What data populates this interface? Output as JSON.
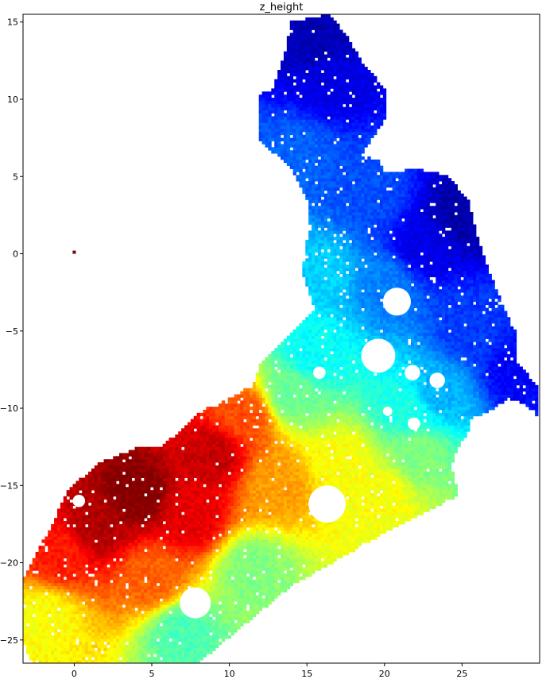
{
  "chart_data": {
    "type": "heatmap",
    "title": "z_height",
    "xlabel": "",
    "ylabel": "",
    "xlim": [
      -3.3,
      30.0
    ],
    "ylim": [
      -26.5,
      15.5
    ],
    "xticks": [
      0,
      5,
      10,
      15,
      20,
      25
    ],
    "yticks": [
      -25,
      -20,
      -15,
      -10,
      -5,
      0,
      5,
      10,
      15
    ],
    "xtick_labels": [
      "0",
      "5",
      "10",
      "15",
      "20",
      "25"
    ],
    "ytick_labels": [
      "−25",
      "−20",
      "−15",
      "−10",
      "−5",
      "0",
      "5",
      "10",
      "15"
    ],
    "colormap": "jet",
    "grid": false,
    "legend": "none",
    "colorbar": false,
    "value_range": [
      0,
      1
    ],
    "region_outline": [
      [
        -2.8,
        -26.5
      ],
      [
        8.0,
        -26.5
      ],
      [
        14.0,
        -21.5
      ],
      [
        20.5,
        -17.8
      ],
      [
        24.8,
        -15.6
      ],
      [
        24.3,
        -13.8
      ],
      [
        24.6,
        -12.8
      ],
      [
        25.3,
        -11.8
      ],
      [
        25.6,
        -10.6
      ],
      [
        26.6,
        -10.3
      ],
      [
        28.0,
        -9.4
      ],
      [
        29.0,
        -9.7
      ],
      [
        29.9,
        -10.5
      ],
      [
        29.9,
        -8.6
      ],
      [
        28.5,
        -7.0
      ],
      [
        28.4,
        -5.0
      ],
      [
        27.8,
        -3.8
      ],
      [
        27.0,
        -1.8
      ],
      [
        26.0,
        1.0
      ],
      [
        25.4,
        3.5
      ],
      [
        24.0,
        5.1
      ],
      [
        22.0,
        5.5
      ],
      [
        20.0,
        5.2
      ],
      [
        19.7,
        6.0
      ],
      [
        18.5,
        6.4
      ],
      [
        20.0,
        8.6
      ],
      [
        20.0,
        10.7
      ],
      [
        18.5,
        12.5
      ],
      [
        17.5,
        14.2
      ],
      [
        16.5,
        15.5
      ],
      [
        14.0,
        15.0
      ],
      [
        13.5,
        12.7
      ],
      [
        12.8,
        10.6
      ],
      [
        11.8,
        10.3
      ],
      [
        11.8,
        7.5
      ],
      [
        14.0,
        5.5
      ],
      [
        15.0,
        3.5
      ],
      [
        15.0,
        1.0
      ],
      [
        14.7,
        -1.3
      ],
      [
        15.5,
        -3.7
      ],
      [
        15.0,
        -4.2
      ],
      [
        13.5,
        -5.6
      ],
      [
        12.0,
        -7.2
      ],
      [
        11.6,
        -8.4
      ],
      [
        9.8,
        -9.5
      ],
      [
        8.0,
        -10.2
      ],
      [
        7.0,
        -11.4
      ],
      [
        5.5,
        -12.5
      ],
      [
        4.0,
        -12.6
      ],
      [
        1.5,
        -13.6
      ],
      [
        -0.5,
        -15.4
      ],
      [
        -1.4,
        -17.5
      ],
      [
        -2.4,
        -19.3
      ],
      [
        -3.3,
        -21.0
      ],
      [
        -3.3,
        -25.0
      ]
    ],
    "outlier_points": [
      {
        "x": 0.0,
        "y": 0.1,
        "value": 1.0
      }
    ],
    "value_anchors": [
      {
        "x": 4.0,
        "y": -15.5,
        "value": 1.0
      },
      {
        "x": 1.5,
        "y": -17.5,
        "value": 0.95
      },
      {
        "x": 9.0,
        "y": -13.0,
        "value": 0.93
      },
      {
        "x": 7.5,
        "y": -17.0,
        "value": 0.9
      },
      {
        "x": -1.0,
        "y": -19.5,
        "value": 0.85
      },
      {
        "x": 11.0,
        "y": -10.5,
        "value": 0.8
      },
      {
        "x": 5.0,
        "y": -21.0,
        "value": 0.78
      },
      {
        "x": 13.0,
        "y": -15.0,
        "value": 0.72
      },
      {
        "x": -2.0,
        "y": -23.5,
        "value": 0.62
      },
      {
        "x": 17.5,
        "y": -13.5,
        "value": 0.62
      },
      {
        "x": 20.0,
        "y": -15.5,
        "value": 0.62
      },
      {
        "x": 11.5,
        "y": -20.5,
        "value": 0.5
      },
      {
        "x": 7.0,
        "y": -24.5,
        "value": 0.45
      },
      {
        "x": 14.0,
        "y": -9.0,
        "value": 0.48
      },
      {
        "x": 22.0,
        "y": -13.0,
        "value": 0.5
      },
      {
        "x": 15.5,
        "y": -6.5,
        "value": 0.38
      },
      {
        "x": 21.5,
        "y": -10.0,
        "value": 0.4
      },
      {
        "x": 16.0,
        "y": -1.5,
        "value": 0.33
      },
      {
        "x": 23.5,
        "y": -9.0,
        "value": 0.3
      },
      {
        "x": 20.0,
        "y": -2.0,
        "value": 0.25
      },
      {
        "x": 25.5,
        "y": -5.0,
        "value": 0.18
      },
      {
        "x": 28.5,
        "y": -7.5,
        "value": 0.12
      },
      {
        "x": 14.5,
        "y": 6.5,
        "value": 0.22
      },
      {
        "x": 19.0,
        "y": 4.0,
        "value": 0.2
      },
      {
        "x": 25.0,
        "y": 2.5,
        "value": 0.04
      },
      {
        "x": 22.5,
        "y": 0.5,
        "value": 0.1
      },
      {
        "x": 16.5,
        "y": 11.0,
        "value": 0.1
      },
      {
        "x": 15.5,
        "y": 14.0,
        "value": 0.05
      }
    ],
    "holes": [
      {
        "x": 0.3,
        "y": -16.0,
        "r": 0.4
      },
      {
        "x": 7.8,
        "y": -22.6,
        "r": 1.0
      },
      {
        "x": 16.3,
        "y": -16.2,
        "r": 1.2
      },
      {
        "x": 20.8,
        "y": -3.1,
        "r": 0.9
      },
      {
        "x": 19.6,
        "y": -6.6,
        "r": 1.1
      },
      {
        "x": 21.8,
        "y": -7.7,
        "r": 0.5
      },
      {
        "x": 23.4,
        "y": -8.2,
        "r": 0.5
      },
      {
        "x": 15.8,
        "y": -7.7,
        "r": 0.4
      },
      {
        "x": 21.9,
        "y": -11.0,
        "r": 0.4
      },
      {
        "x": 20.2,
        "y": -10.2,
        "r": 0.3
      }
    ]
  }
}
